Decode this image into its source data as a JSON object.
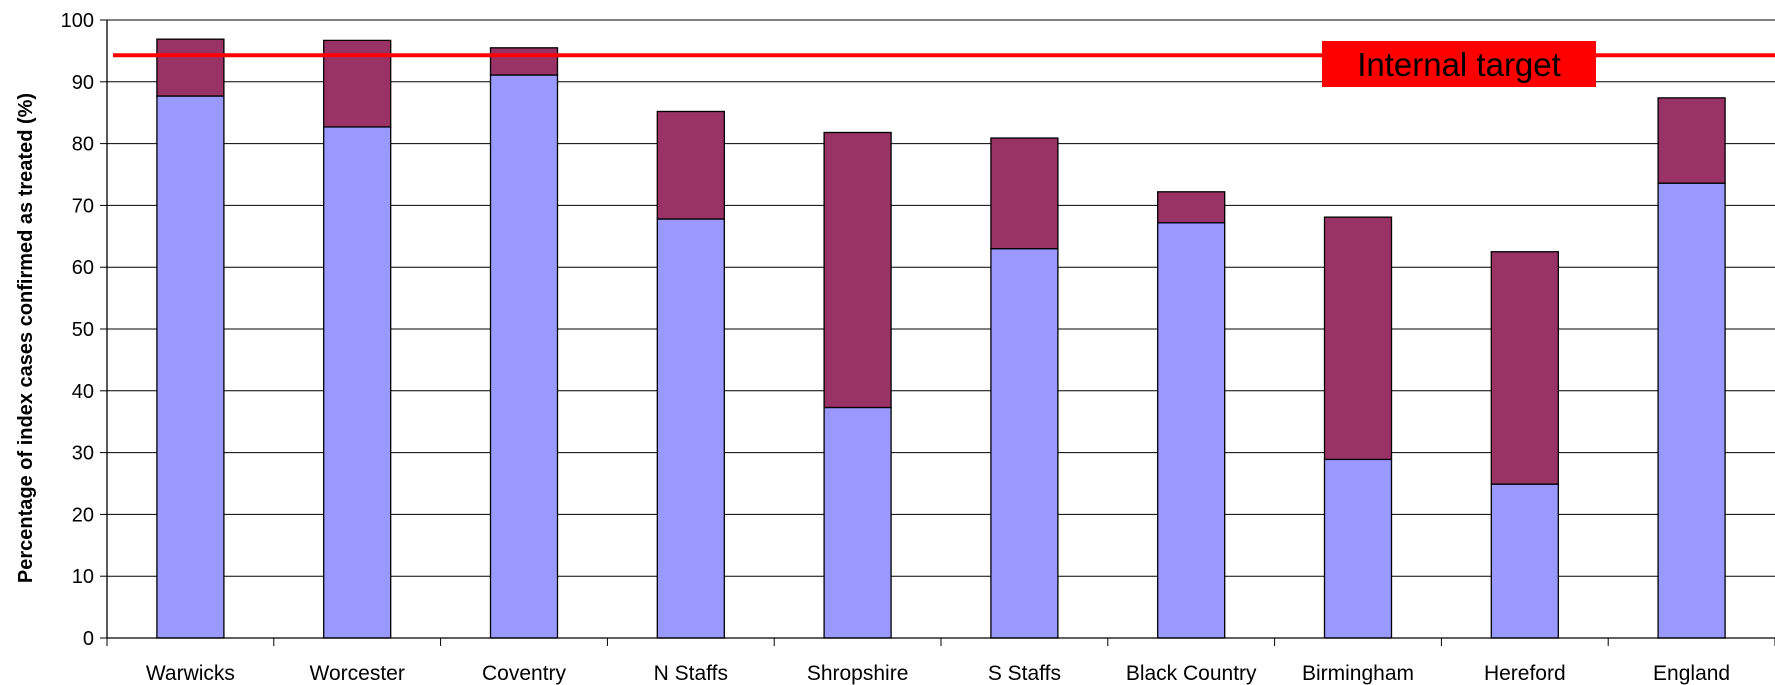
{
  "chart_data": {
    "type": "bar",
    "stacked": true,
    "categories": [
      "Warwicks",
      "Worcester",
      "Coventry",
      "N Staffs",
      "Shropshire",
      "S Staffs",
      "Black Country",
      "Birmingham",
      "Hereford",
      "England"
    ],
    "series": [
      {
        "color": "#9999ff",
        "values": [
          87.7,
          82.7,
          91.1,
          67.8,
          37.3,
          63.0,
          67.2,
          28.9,
          24.9,
          73.6
        ]
      },
      {
        "color": "#993366",
        "values": [
          9.2,
          14.0,
          4.4,
          17.4,
          44.5,
          17.9,
          5.0,
          39.2,
          37.6,
          13.8
        ]
      }
    ],
    "ylabel": "Percentage of index cases confirmed as treated (%)",
    "ylim": [
      0,
      100
    ],
    "yticks": [
      0,
      10,
      20,
      30,
      40,
      50,
      60,
      70,
      80,
      90,
      100
    ],
    "grid": true,
    "target": {
      "label": "Internal target",
      "value": 94.3,
      "color": "#ff0000",
      "label_text_color": "#000000"
    }
  }
}
